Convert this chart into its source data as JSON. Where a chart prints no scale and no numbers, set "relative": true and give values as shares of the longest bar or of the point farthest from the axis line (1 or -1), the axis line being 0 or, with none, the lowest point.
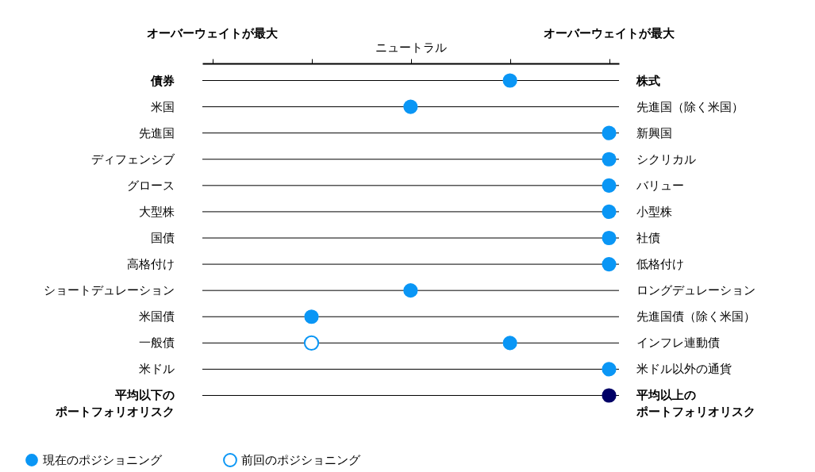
{
  "chart_data": {
    "type": "scatter",
    "orientation": "horizontal",
    "relative": true,
    "categories": [
      "債券",
      "米国",
      "先進国",
      "ディフェンシブ",
      "グロース",
      "大型株",
      "国債",
      "高格付け",
      "ショートデュレーション",
      "米国債",
      "一般債",
      "米ドル",
      "平均以下のポートフォリオリスク"
    ],
    "y2_categories": [
      "株式",
      "先進国（除く米国）",
      "新興国",
      "シクリカル",
      "バリュー",
      "小型株",
      "社債",
      "低格付け",
      "ロングデュレーション",
      "先進国債（除く米国）",
      "インフレ連動債",
      "米ドル以外の通貨",
      "平均以上のポートフォリオリスク"
    ],
    "annotations": [
      "オーバーウェイトが最大",
      "ニュートラル",
      "オーバーウェイトが最大"
    ],
    "series": [
      {
        "name": "現在のポジショニング",
        "color": "#0a96f5",
        "colors": [
          "#0a96f5",
          "#0a96f5",
          "#0a96f5",
          "#0a96f5",
          "#0a96f5",
          "#0a96f5",
          "#0a96f5",
          "#0a96f5",
          "#0a96f5",
          "#0a96f5",
          "#0a96f5",
          "#0a96f5",
          "#000066"
        ],
        "values": [
          0.667,
          0.333,
          1,
          1,
          1,
          1,
          1,
          1,
          0.333,
          0,
          0.667,
          1,
          1
        ]
      },
      {
        "name": "前回のポジショニング",
        "color": "#0a96f5",
        "values": [
          null,
          null,
          null,
          null,
          null,
          null,
          null,
          null,
          null,
          null,
          0,
          null,
          null
        ]
      }
    ],
    "marker": "circle",
    "grid": "y",
    "legend": "bottom left"
  }
}
